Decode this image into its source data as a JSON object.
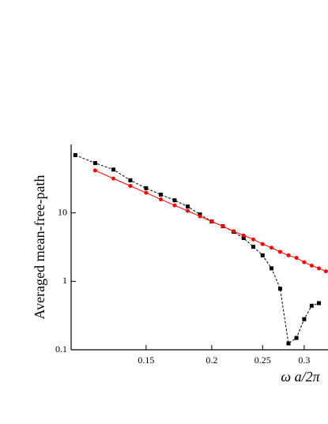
{
  "chart_data": {
    "type": "line",
    "xlabel": "ω a/2π",
    "ylabel": "Averaged mean-free-path",
    "x": [
      0.11,
      0.12,
      0.13,
      0.14,
      0.15,
      0.16,
      0.17,
      0.18,
      0.19,
      0.2,
      0.21,
      0.22,
      0.23,
      0.24,
      0.25,
      0.26,
      0.27,
      0.28,
      0.29,
      0.3,
      0.31,
      0.32,
      0.33
    ],
    "series": [
      {
        "color": "#000000",
        "marker": "square",
        "dashed": true,
        "values": [
          70,
          53.5,
          43,
          30,
          23,
          18.5,
          15.3,
          12.4,
          9.5,
          7.5,
          6.4,
          5.3,
          4.3,
          3.2,
          2.4,
          1.55,
          0.78,
          0.124,
          0.149,
          0.28,
          0.44,
          0.48,
          null
        ]
      },
      {
        "color": "#ff0000",
        "marker": "circle",
        "dashed": false,
        "values": [
          null,
          41.7,
          31.8,
          24.8,
          19.7,
          15.8,
          12.9,
          10.7,
          8.9,
          7.5,
          6.4,
          5.4,
          4.7,
          4.1,
          3.5,
          3.1,
          2.7,
          2.4,
          2.2,
          1.9,
          1.7,
          1.55,
          1.4
        ]
      }
    ],
    "xlim": [
      0.108,
      0.333
    ],
    "ylim": [
      0.1,
      100
    ],
    "xticks": [
      0.15,
      0.2,
      0.25,
      0.3
    ],
    "yticks": [
      0.1,
      1,
      10
    ],
    "xscale": "log",
    "yscale": "log"
  }
}
